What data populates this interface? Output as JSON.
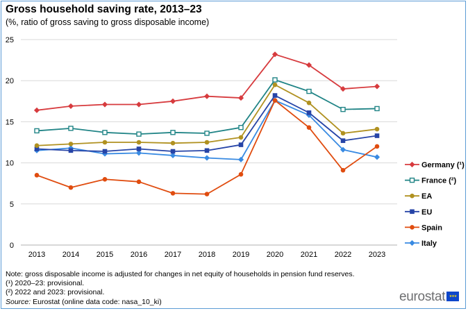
{
  "header": {
    "title": "Gross household saving rate, 2013–23",
    "subtitle": "(%, ratio of gross saving to gross disposable income)"
  },
  "chart_data": {
    "type": "line",
    "title": "Gross household saving rate, 2013–23",
    "subtitle": "(%, ratio of gross saving to gross disposable income)",
    "xlabel": "",
    "ylabel": "",
    "categories": [
      "2013",
      "2014",
      "2015",
      "2016",
      "2017",
      "2018",
      "2019",
      "2020",
      "2021",
      "2022",
      "2023"
    ],
    "yticks": [
      "0",
      "5",
      "10",
      "15",
      "20",
      "25"
    ],
    "ylim": [
      0,
      25
    ],
    "grid": "horizontal",
    "legend": "right",
    "series": [
      {
        "name": "Germany (¹)",
        "color": "#d73b3e",
        "marker": "diamond",
        "values": [
          16.4,
          16.9,
          17.1,
          17.1,
          17.5,
          18.1,
          17.9,
          23.2,
          21.9,
          19.0,
          19.3
        ]
      },
      {
        "name": "France (²)",
        "color": "#208486",
        "marker": "square-open",
        "values": [
          13.9,
          14.2,
          13.7,
          13.5,
          13.7,
          13.6,
          14.3,
          20.1,
          18.7,
          16.5,
          16.6
        ]
      },
      {
        "name": "EA",
        "color": "#b09120",
        "marker": "circle",
        "values": [
          12.1,
          12.3,
          12.5,
          12.5,
          12.4,
          12.5,
          13.1,
          19.5,
          17.3,
          13.6,
          14.1
        ]
      },
      {
        "name": "EU",
        "color": "#2644a7",
        "marker": "square",
        "values": [
          11.7,
          11.5,
          11.4,
          11.7,
          11.4,
          11.5,
          12.2,
          18.2,
          16.1,
          12.7,
          13.3
        ]
      },
      {
        "name": "Spain",
        "color": "#e04c0f",
        "marker": "circle",
        "values": [
          8.5,
          7.0,
          8.0,
          7.7,
          6.3,
          6.2,
          8.6,
          17.6,
          14.3,
          9.1,
          12.0
        ]
      },
      {
        "name": "Italy",
        "color": "#388ae2",
        "marker": "diamond",
        "values": [
          11.5,
          11.8,
          11.1,
          11.2,
          10.9,
          10.6,
          10.4,
          17.6,
          15.8,
          11.6,
          10.7
        ]
      }
    ]
  },
  "footer": {
    "note": "Note: gross disposable income is adjusted for changes in net equity of households in pension fund reserves.",
    "fn1": "(¹) 2020–23: provisional.",
    "fn2": "(²) 2022 and 2023: provisional.",
    "source_label": "Source:",
    "source_text": " Eurostat (online data code: nasa_10_ki)",
    "logo": "eurostat",
    "logo_icon": "eu-flag-icon"
  }
}
